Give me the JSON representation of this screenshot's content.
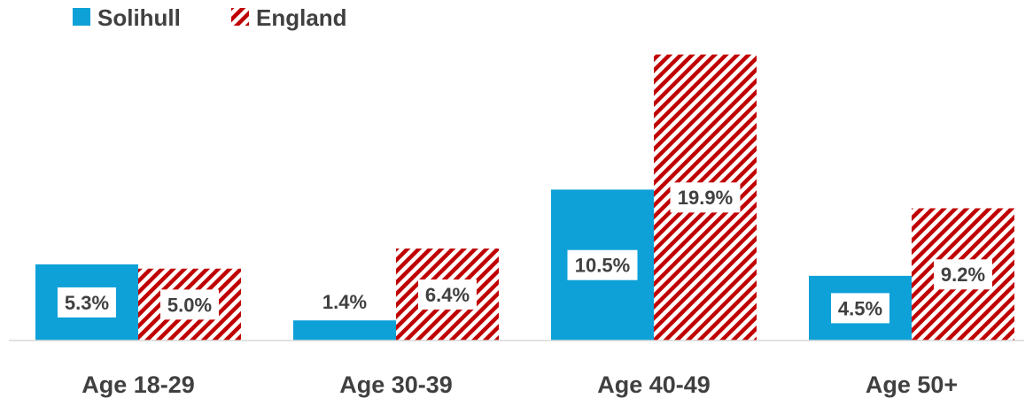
{
  "chart_data": {
    "type": "bar",
    "categories": [
      "Age 18-29",
      "Age 30-39",
      "Age 40-49",
      "Age 50+"
    ],
    "series": [
      {
        "name": "Solihull",
        "values": [
          5.3,
          1.4,
          10.5,
          4.5
        ],
        "labels": [
          "5.3%",
          "1.4%",
          "10.5%",
          "4.5%"
        ],
        "color": "#0ea1d8",
        "pattern": "solid"
      },
      {
        "name": "England",
        "values": [
          5.0,
          6.4,
          19.9,
          9.2
        ],
        "labels": [
          "5.0%",
          "6.4%",
          "19.9%",
          "9.2%"
        ],
        "color": "#c00000",
        "pattern": "diagonal-hatch"
      }
    ],
    "title": "",
    "xlabel": "",
    "ylabel": "",
    "ylim": [
      0,
      20
    ],
    "grid": false,
    "legend": "top-left"
  }
}
